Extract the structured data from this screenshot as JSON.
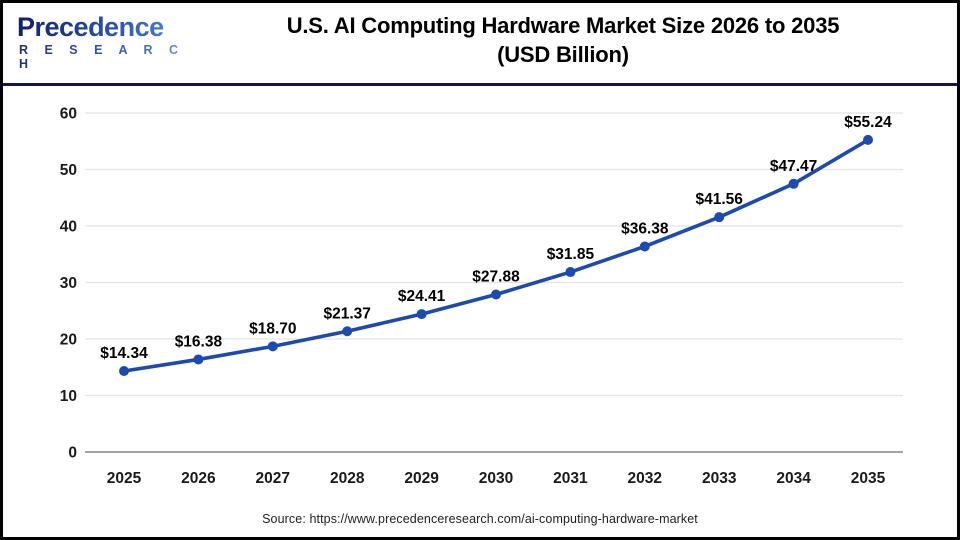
{
  "header": {
    "logo_name": "Precedence",
    "logo_sub": "R E S E A R C H",
    "title_line1": "U.S. AI Computing Hardware Market Size 2026 to 2035",
    "title_line2": "(USD Billion)"
  },
  "chart_data": {
    "type": "line",
    "title": "U.S. AI Computing Hardware Market Size 2026 to 2035 (USD Billion)",
    "categories": [
      "2025",
      "2026",
      "2027",
      "2028",
      "2029",
      "2030",
      "2031",
      "2032",
      "2033",
      "2034",
      "2035"
    ],
    "values": [
      14.34,
      16.38,
      18.7,
      21.37,
      24.41,
      27.88,
      31.85,
      36.38,
      41.56,
      47.47,
      55.24
    ],
    "point_labels": [
      "$14.34",
      "$16.38",
      "$18.70",
      "$21.37",
      "$24.41",
      "$27.88",
      "$31.85",
      "$36.38",
      "$41.56",
      "$47.47",
      "$55.24"
    ],
    "series_name": "U.S. AI Computing Hardware Market Size (USD Billion)",
    "xlabel": "",
    "ylabel": "",
    "ylim": [
      0,
      60
    ],
    "yticks": [
      0,
      10,
      20,
      30,
      40,
      50,
      60
    ],
    "grid": true,
    "legend": "none",
    "line_color": "#1d4ab0",
    "marker_color": "#1d4ab0",
    "grid_color": "#e4e4e4",
    "baseline_color": "#a3a3a3",
    "tick_label_color": "#1a1a1a",
    "data_label_color": "#000000"
  },
  "footer": {
    "source": "Source: https://www.precedenceresearch.com/ai-computing-hardware-market"
  }
}
